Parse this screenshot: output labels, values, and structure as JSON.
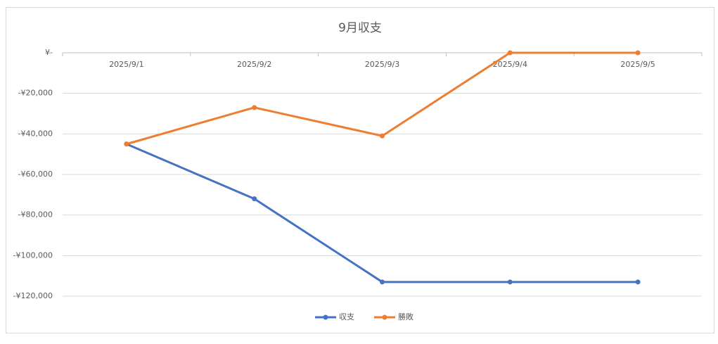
{
  "chart_data": {
    "type": "line",
    "title": "9月収支",
    "categories": [
      "2025/9/1",
      "2025/9/2",
      "2025/9/3",
      "2025/9/4",
      "2025/9/5"
    ],
    "series": [
      {
        "name": "収支",
        "color": "#4472c4",
        "values": [
          -45000,
          -72000,
          -113000,
          -113000,
          -113000
        ]
      },
      {
        "name": "勝敗",
        "color": "#ed7d31",
        "values": [
          -45000,
          -27000,
          -41000,
          0,
          0
        ]
      }
    ],
    "ylim": [
      -120000,
      0
    ],
    "yticks": [
      {
        "value": 0,
        "label": "¥-"
      },
      {
        "value": -20000,
        "label": "-¥20,000"
      },
      {
        "value": -40000,
        "label": "-¥40,000"
      },
      {
        "value": -60000,
        "label": "-¥60,000"
      },
      {
        "value": -80000,
        "label": "-¥80,000"
      },
      {
        "value": -100000,
        "label": "-¥100,000"
      },
      {
        "value": -120000,
        "label": "-¥120,000"
      }
    ],
    "grid": true,
    "legend": "bottom"
  }
}
